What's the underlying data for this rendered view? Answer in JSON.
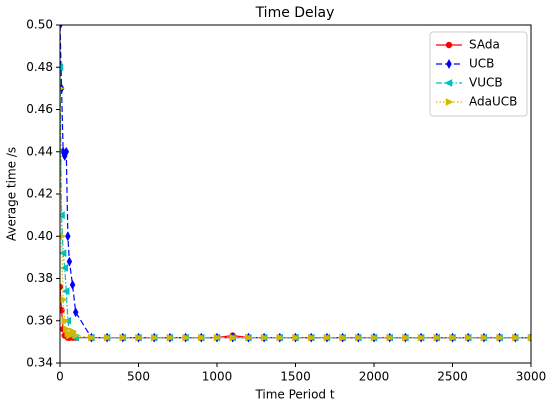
{
  "chart_data": {
    "type": "line",
    "title": "Time Delay",
    "xlabel": "Time Period t",
    "ylabel": "Average time /s",
    "x": [
      0,
      10,
      20,
      30,
      40,
      50,
      60,
      80,
      100,
      200,
      300,
      400,
      500,
      600,
      700,
      800,
      900,
      1000,
      1100,
      1200,
      1300,
      1400,
      1500,
      1600,
      1700,
      1800,
      1900,
      2000,
      2100,
      2200,
      2300,
      2400,
      2500,
      2600,
      2700,
      2800,
      2900,
      3000
    ],
    "series": [
      {
        "name": "SAda",
        "color": "#ff0000",
        "linestyle": "solid",
        "marker": "o",
        "values": [
          0.376,
          0.365,
          0.356,
          0.353,
          0.353,
          0.352,
          0.352,
          0.352,
          0.352,
          0.352,
          0.352,
          0.352,
          0.352,
          0.352,
          0.352,
          0.352,
          0.352,
          0.352,
          0.353,
          0.352,
          0.352,
          0.352,
          0.352,
          0.352,
          0.352,
          0.352,
          0.352,
          0.352,
          0.352,
          0.352,
          0.352,
          0.352,
          0.352,
          0.352,
          0.352,
          0.352,
          0.352,
          0.352
        ]
      },
      {
        "name": "UCB",
        "color": "#0000ff",
        "linestyle": "dashed",
        "marker": "d",
        "values": [
          0.5,
          0.47,
          0.44,
          0.438,
          0.44,
          0.4,
          0.388,
          0.377,
          0.364,
          0.352,
          0.352,
          0.352,
          0.352,
          0.352,
          0.352,
          0.352,
          0.352,
          0.352,
          0.352,
          0.352,
          0.352,
          0.352,
          0.352,
          0.352,
          0.352,
          0.352,
          0.352,
          0.352,
          0.352,
          0.352,
          0.352,
          0.352,
          0.352,
          0.352,
          0.352,
          0.352,
          0.352,
          0.352
        ]
      },
      {
        "name": "VUCB",
        "color": "#00bfbf",
        "linestyle": "dashdot",
        "marker": "<",
        "values": [
          0.48,
          0.41,
          0.392,
          0.385,
          0.374,
          0.36,
          0.354,
          0.353,
          0.352,
          0.352,
          0.352,
          0.352,
          0.352,
          0.352,
          0.352,
          0.352,
          0.352,
          0.352,
          0.352,
          0.352,
          0.352,
          0.352,
          0.352,
          0.352,
          0.352,
          0.352,
          0.352,
          0.352,
          0.352,
          0.352,
          0.352,
          0.352,
          0.352,
          0.352,
          0.352,
          0.352,
          0.352,
          0.352
        ]
      },
      {
        "name": "AdaUCB",
        "color": "#d4b800",
        "linestyle": "dotted",
        "marker": ">",
        "values": [
          0.47,
          0.4,
          0.37,
          0.36,
          0.356,
          0.354,
          0.353,
          0.355,
          0.353,
          0.352,
          0.352,
          0.352,
          0.352,
          0.352,
          0.352,
          0.352,
          0.352,
          0.352,
          0.352,
          0.352,
          0.352,
          0.352,
          0.352,
          0.352,
          0.352,
          0.352,
          0.352,
          0.352,
          0.352,
          0.352,
          0.352,
          0.352,
          0.352,
          0.352,
          0.352,
          0.352,
          0.352,
          0.352
        ]
      }
    ],
    "xlim": [
      0,
      3000
    ],
    "xticks": [
      0,
      500,
      1000,
      1500,
      2000,
      2500,
      3000
    ],
    "ylim": [
      0.34,
      0.5
    ],
    "yticks": [
      0.34,
      0.36,
      0.38,
      {
        "value": 0.4,
        "label": "0.40"
      },
      0.42,
      0.44,
      0.46,
      0.48,
      {
        "value": 0.5,
        "label": "0.50"
      }
    ],
    "legend": "upper right"
  }
}
